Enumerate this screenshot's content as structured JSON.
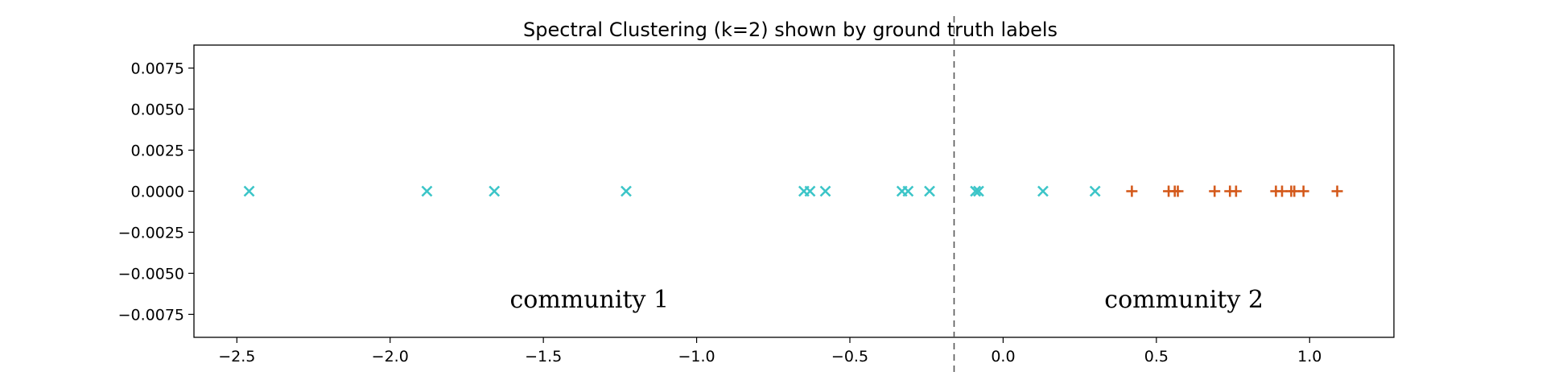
{
  "chart_data": {
    "type": "scatter",
    "title": "Spectral Clustering (k=2) shown by ground truth labels",
    "xlabel": "",
    "ylabel": "",
    "xlim": [
      -2.64,
      1.275
    ],
    "ylim": [
      -0.0089,
      0.0089
    ],
    "x_ticks": [
      -2.5,
      -2.0,
      -1.5,
      -1.0,
      -0.5,
      0.0,
      0.5,
      1.0
    ],
    "x_tick_labels": [
      "−2.5",
      "−2.0",
      "−1.5",
      "−1.0",
      "−0.5",
      "0.0",
      "0.5",
      "1.0"
    ],
    "y_ticks": [
      0.0075,
      0.005,
      0.0025,
      0.0,
      -0.0025,
      -0.005,
      -0.0075
    ],
    "y_tick_labels": [
      "0.0075",
      "0.0050",
      "0.0025",
      "0.0000",
      "−0.0025",
      "−0.0050",
      "−0.0075"
    ],
    "grid": false,
    "divider_x": -0.16,
    "series": [
      {
        "marker": "x",
        "color": "#3cc5c8",
        "x": [
          -2.46,
          -1.88,
          -1.66,
          -1.23,
          -0.65,
          -0.63,
          -0.58,
          -0.33,
          -0.31,
          -0.24,
          -0.09,
          -0.08,
          0.13,
          0.3
        ],
        "y": [
          0,
          0,
          0,
          0,
          0,
          0,
          0,
          0,
          0,
          0,
          0,
          0,
          0,
          0
        ]
      },
      {
        "marker": "+",
        "color": "#d45a1c",
        "x": [
          0.42,
          0.54,
          0.56,
          0.57,
          0.69,
          0.74,
          0.76,
          0.89,
          0.91,
          0.94,
          0.95,
          0.98,
          1.09
        ],
        "y": [
          0,
          0,
          0,
          0,
          0,
          0,
          0,
          0,
          0,
          0,
          0,
          0,
          0
        ]
      }
    ],
    "annotations": [
      {
        "text": "community 1",
        "x": -1.35,
        "y": -0.0065
      },
      {
        "text": "community 2",
        "x": 0.59,
        "y": -0.0065
      }
    ]
  }
}
